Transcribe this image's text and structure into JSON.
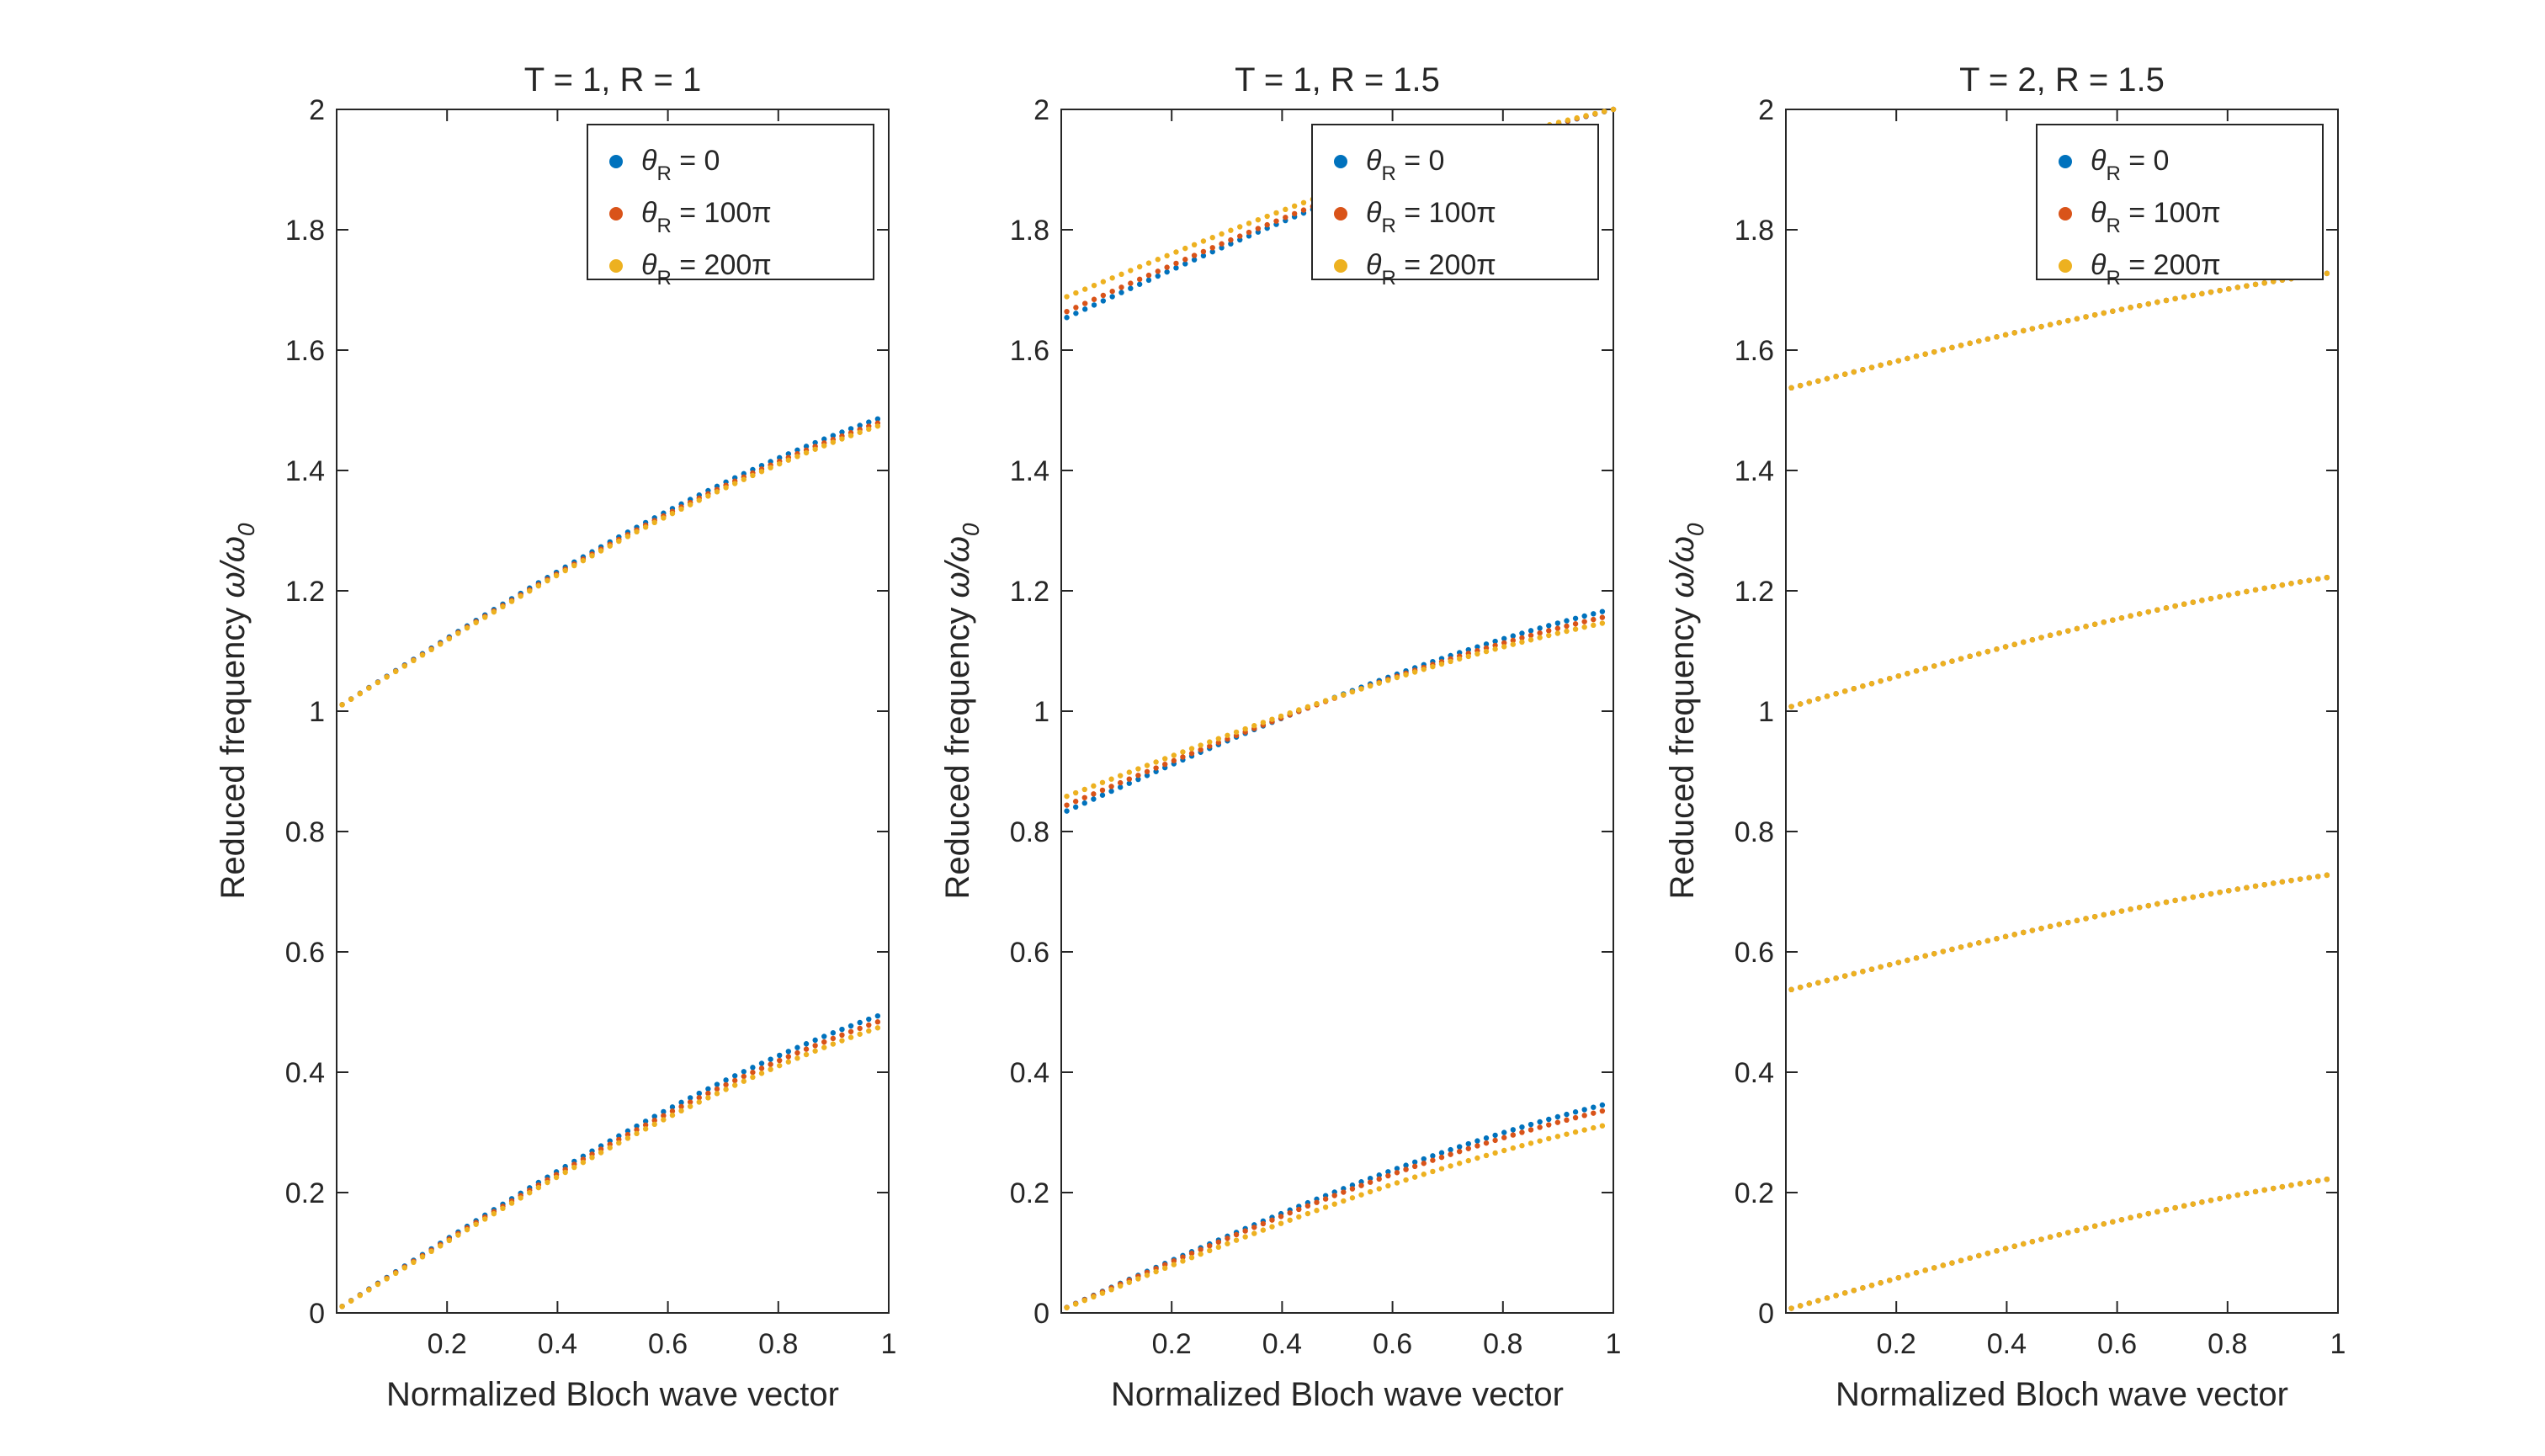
{
  "figure": {
    "background": "#ffffff",
    "axis_color": "#262626"
  },
  "legend_entries": [
    {
      "symbol": "θ",
      "sub": "R",
      "text": " = 0",
      "color": "#0072BD"
    },
    {
      "symbol": "θ",
      "sub": "R",
      "text": " = 100π",
      "color": "#D95319"
    },
    {
      "symbol": "θ",
      "sub": "R",
      "text": " = 200π",
      "color": "#EDB120"
    }
  ],
  "chart_data": [
    {
      "type": "scatter",
      "title": "T = 1, R = 1",
      "xlabel": "Normalized Bloch wave vector",
      "ylabel_text": "Reduced frequency ",
      "ylabel_math": "ω/ω",
      "ylabel_sub": "0",
      "xlim": [
        0,
        1
      ],
      "ylim": [
        0,
        2
      ],
      "xticks": [
        0.2,
        0.4,
        0.6,
        0.8,
        1
      ],
      "xtick_labels": [
        "0.2",
        "0.4",
        "0.6",
        "0.8",
        "1"
      ],
      "yticks": [
        0,
        0.2,
        0.4,
        0.6,
        0.8,
        1,
        1.2,
        1.4,
        1.6,
        1.8,
        2
      ],
      "ytick_labels": [
        "0",
        "0.2",
        "0.4",
        "0.6",
        "0.8",
        "1",
        "1.2",
        "1.4",
        "1.6",
        "1.8",
        "2"
      ],
      "legend_position": "top-right",
      "series": [
        {
          "name": "θR = 0",
          "color": "#0072BD",
          "bands": [
            [
              0.005,
              0.5
            ],
            [
              0.995,
              0.508
            ],
            [
              1.005,
              1.492
            ],
            [
              1.995,
              1.508
            ]
          ]
        },
        {
          "name": "θR = 100π",
          "color": "#D95319",
          "bands": [
            [
              0.005,
              0.49
            ],
            [
              0.995,
              0.51
            ],
            [
              1.005,
              1.485
            ],
            [
              1.995,
              1.515
            ]
          ]
        },
        {
          "name": "θR = 200π",
          "color": "#EDB120",
          "bands": [
            [
              0.005,
              0.48
            ],
            [
              0.995,
              0.52
            ],
            [
              1.005,
              1.48
            ],
            [
              1.995,
              1.52
            ]
          ]
        }
      ]
    },
    {
      "type": "scatter",
      "title": "T = 1, R = 1.5",
      "xlabel": "Normalized Bloch wave vector",
      "ylabel_text": "Reduced frequency ",
      "ylabel_math": "ω/ω",
      "ylabel_sub": "0",
      "xlim": [
        0,
        1
      ],
      "ylim": [
        0,
        2
      ],
      "xticks": [
        0.2,
        0.4,
        0.6,
        0.8,
        1
      ],
      "xtick_labels": [
        "0.2",
        "0.4",
        "0.6",
        "0.8",
        "1"
      ],
      "yticks": [
        0,
        0.2,
        0.4,
        0.6,
        0.8,
        1,
        1.2,
        1.4,
        1.6,
        1.8,
        2
      ],
      "ytick_labels": [
        "0",
        "0.2",
        "0.4",
        "0.6",
        "0.8",
        "1",
        "1.2",
        "1.4",
        "1.6",
        "1.8",
        "2"
      ],
      "legend_position": "top-right",
      "series": [
        {
          "name": "θR = 0",
          "color": "#0072BD",
          "bands": [
            [
              0.005,
              0.35
            ],
            [
              0.77,
              0.45
            ],
            [
              0.83,
              1.17
            ],
            [
              1.55,
              1.23
            ],
            [
              1.65,
              2.0
            ]
          ]
        },
        {
          "name": "θR = 100π",
          "color": "#D95319",
          "bands": [
            [
              0.005,
              0.34
            ],
            [
              0.765,
              0.46
            ],
            [
              0.84,
              1.16
            ],
            [
              1.54,
              1.24
            ],
            [
              1.66,
              2.0
            ]
          ]
        },
        {
          "name": "θR = 200π",
          "color": "#EDB120",
          "bands": [
            [
              0.005,
              0.315
            ],
            [
              0.75,
              0.485
            ],
            [
              0.855,
              1.15
            ],
            [
              1.52,
              1.25
            ],
            [
              1.685,
              2.0
            ]
          ]
        }
      ]
    },
    {
      "type": "scatter",
      "title": "T = 2, R = 1.5",
      "xlabel": "Normalized Bloch wave vector",
      "ylabel_text": "Reduced frequency ",
      "ylabel_math": "ω/ω",
      "ylabel_sub": "0",
      "xlim": [
        0,
        1
      ],
      "ylim": [
        0,
        2
      ],
      "xticks": [
        0.2,
        0.4,
        0.6,
        0.8,
        1
      ],
      "xtick_labels": [
        "0.2",
        "0.4",
        "0.6",
        "0.8",
        "1"
      ],
      "yticks": [
        0,
        0.2,
        0.4,
        0.6,
        0.8,
        1,
        1.2,
        1.4,
        1.6,
        1.8,
        2
      ],
      "ytick_labels": [
        "0",
        "0.2",
        "0.4",
        "0.6",
        "0.8",
        "1",
        "1.2",
        "1.4",
        "1.6",
        "1.8",
        "2"
      ],
      "legend_position": "top-right",
      "series": [
        {
          "name": "θR = 0",
          "color": "#0072BD",
          "bands": [
            [
              0.005,
              0.225
            ],
            [
              0.47,
              0.273
            ],
            [
              0.535,
              0.73
            ],
            [
              1.0,
              0.775
            ],
            [
              1.005,
              1.225
            ],
            [
              1.465,
              1.272
            ],
            [
              1.535,
              1.73
            ],
            [
              2.0,
              1.775
            ]
          ]
        },
        {
          "name": "θR = 100π",
          "color": "#D95319",
          "bands": [
            [
              0.005,
              0.225
            ],
            [
              0.47,
              0.273
            ],
            [
              0.535,
              0.73
            ],
            [
              1.0,
              0.775
            ],
            [
              1.005,
              1.225
            ],
            [
              1.465,
              1.272
            ],
            [
              1.535,
              1.73
            ],
            [
              2.0,
              1.775
            ]
          ]
        },
        {
          "name": "θR = 200π",
          "color": "#EDB120",
          "bands": [
            [
              0.005,
              0.225
            ],
            [
              0.47,
              0.273
            ],
            [
              0.535,
              0.73
            ],
            [
              1.0,
              0.775
            ],
            [
              1.005,
              1.225
            ],
            [
              1.465,
              1.272
            ],
            [
              1.535,
              1.73
            ],
            [
              2.0,
              1.775
            ]
          ]
        }
      ]
    }
  ]
}
